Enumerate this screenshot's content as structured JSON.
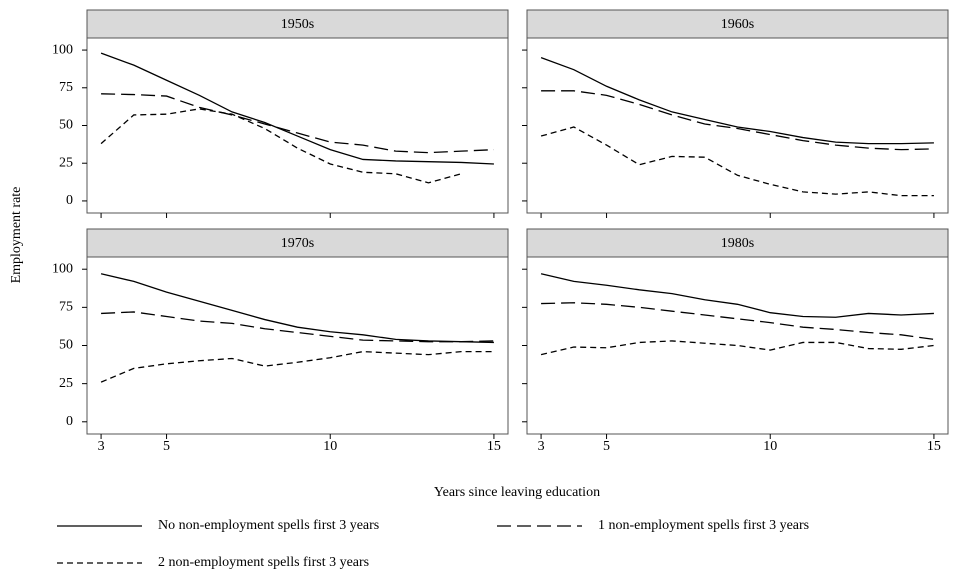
{
  "y_label": "Employment rate",
  "x_label": "Years since leaving education",
  "legend": [
    {
      "name": "No non-employment spells first 3 years",
      "dash": "none"
    },
    {
      "name": "1 non-employment spells first 3 years",
      "dash": "14 6"
    },
    {
      "name": "2 non-employment spells first 3 years",
      "dash": "6 4"
    }
  ],
  "chart_data": [
    {
      "type": "line",
      "title": "1950s",
      "x": [
        3,
        4,
        5,
        6,
        7,
        8,
        9,
        10,
        11,
        12,
        13,
        14,
        15
      ],
      "xlim": [
        2.57,
        15.43
      ],
      "ylim": [
        -8,
        108
      ],
      "xticks": [
        3,
        5,
        10,
        15
      ],
      "yticks": [
        0,
        25,
        50,
        75,
        100
      ],
      "color": "#000000",
      "series": [
        {
          "values": [
            98,
            90,
            80,
            70,
            59,
            52,
            43,
            34,
            27.5,
            26.5,
            26,
            25.5,
            24.5
          ]
        },
        {
          "values": [
            71,
            70.5,
            69.5,
            62,
            57,
            51,
            45,
            39,
            37,
            33,
            32,
            33,
            34
          ]
        },
        {
          "values": [
            38,
            57,
            57.5,
            61,
            57.5,
            48,
            35,
            24.5,
            19,
            18,
            12,
            18,
            null
          ]
        }
      ]
    },
    {
      "type": "line",
      "title": "1960s",
      "x": [
        3,
        4,
        5,
        6,
        7,
        8,
        9,
        10,
        11,
        12,
        13,
        14,
        15
      ],
      "xlim": [
        2.57,
        15.43
      ],
      "ylim": [
        -8,
        108
      ],
      "xticks": [
        3,
        5,
        10,
        15
      ],
      "yticks": [
        0,
        25,
        50,
        75,
        100
      ],
      "color": "#000000",
      "series": [
        {
          "values": [
            95,
            87,
            76,
            67,
            59,
            54,
            49,
            46,
            42,
            39,
            38,
            38,
            38.5
          ]
        },
        {
          "values": [
            73,
            73,
            70,
            64,
            57,
            51,
            48,
            44,
            40,
            37,
            35,
            34,
            34.5
          ]
        },
        {
          "values": [
            43,
            49,
            37,
            24,
            29.5,
            29,
            17,
            11,
            6,
            4.5,
            6,
            3.5,
            3.5
          ]
        }
      ]
    },
    {
      "type": "line",
      "title": "1970s",
      "x": [
        3,
        4,
        5,
        6,
        7,
        8,
        9,
        10,
        11,
        12,
        13,
        14,
        15
      ],
      "xlim": [
        2.57,
        15.43
      ],
      "ylim": [
        -8,
        108
      ],
      "xticks": [
        3,
        5,
        10,
        15
      ],
      "yticks": [
        0,
        25,
        50,
        75,
        100
      ],
      "color": "#000000",
      "series": [
        {
          "values": [
            97,
            92,
            85,
            79,
            73,
            67,
            62,
            59,
            57,
            54,
            53,
            52.5,
            52
          ]
        },
        {
          "values": [
            71,
            72,
            69,
            66,
            64.5,
            61,
            58.5,
            56,
            53.5,
            53,
            52.5,
            52.5,
            53
          ]
        },
        {
          "values": [
            26,
            35,
            38,
            40,
            41.5,
            36.5,
            39,
            42,
            46,
            45,
            44,
            46,
            46
          ]
        }
      ]
    },
    {
      "type": "line",
      "title": "1980s",
      "x": [
        3,
        4,
        5,
        6,
        7,
        8,
        9,
        10,
        11,
        12,
        13,
        14,
        15
      ],
      "xlim": [
        2.57,
        15.43
      ],
      "ylim": [
        -8,
        108
      ],
      "xticks": [
        3,
        5,
        10,
        15
      ],
      "yticks": [
        0,
        25,
        50,
        75,
        100
      ],
      "color": "#000000",
      "series": [
        {
          "values": [
            97,
            92,
            89.5,
            86.5,
            84,
            80,
            77,
            71.5,
            69,
            68.5,
            71,
            70,
            71
          ]
        },
        {
          "values": [
            77.5,
            78,
            77,
            75,
            72.5,
            70,
            67.5,
            65,
            62,
            60.5,
            58.5,
            57,
            54
          ]
        },
        {
          "values": [
            44,
            49,
            48.5,
            52,
            53,
            51.5,
            50,
            47,
            52,
            52,
            48,
            47.5,
            50
          ]
        }
      ]
    }
  ]
}
